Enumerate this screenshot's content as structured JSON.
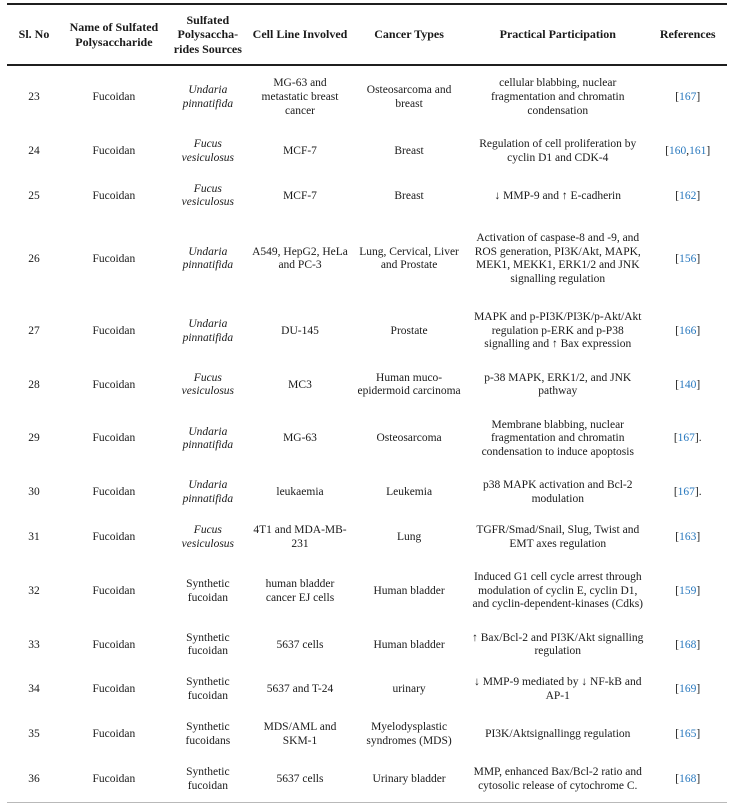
{
  "table": {
    "accent_color": "#2878be",
    "headers": [
      "Sl. No",
      "Name of Sulfated Polysaccharide",
      "Sulfated Polysaccha-rides Sources",
      "Cell Line Involved",
      "Cancer Types",
      "Practical Participation",
      "References"
    ],
    "rows": [
      {
        "no": "23",
        "name": "Fucoidan",
        "source": "Undaria pinnatifida",
        "source_italic": true,
        "cell_line": "MG-63 and metastatic breast cancer",
        "cancer": "Osteosarcoma and breast",
        "participation": "cellular blabbing, nuclear fragmentation and chromatin condensation",
        "ref_nums": [
          "167"
        ],
        "ref_suffix": ""
      },
      {
        "no": "24",
        "name": "Fucoidan",
        "source": "Fucus vesiculosus",
        "source_italic": true,
        "cell_line": "MCF-7",
        "cancer": "Breast",
        "participation": "Regulation of cell proliferation by cyclin D1 and CDK-4",
        "ref_nums": [
          "160",
          "161"
        ],
        "ref_suffix": ""
      },
      {
        "no": "25",
        "name": "Fucoidan",
        "source": "Fucus vesiculosus",
        "source_italic": true,
        "cell_line": "MCF-7",
        "cancer": "Breast",
        "participation": "↓ MMP-9 and ↑ E-cadherin",
        "ref_nums": [
          "162"
        ],
        "ref_suffix": ""
      },
      {
        "no": "26",
        "name": "Fucoidan",
        "source": "Undaria pinnatifida",
        "source_italic": true,
        "cell_line": "A549, HepG2, HeLa and PC-3",
        "cancer": "Lung, Cervical, Liver and Prostate",
        "participation": "Activation of caspase-8 and -9, and ROS generation, PI3K/Akt, MAPK, MEK1, MEKK1, ERK1/2 and JNK signalling regulation",
        "ref_nums": [
          "156"
        ],
        "ref_suffix": ""
      },
      {
        "no": "27",
        "name": "Fucoidan",
        "source": "Undaria pinnatifida",
        "source_italic": true,
        "cell_line": "DU-145",
        "cancer": "Prostate",
        "participation": "MAPK and p-PI3K/PI3K/p-Akt/Akt regulation p-ERK and p-P38 signalling and ↑ Bax expression",
        "ref_nums": [
          "166"
        ],
        "ref_suffix": ""
      },
      {
        "no": "28",
        "name": "Fucoidan",
        "source": "Fucus vesiculosus",
        "source_italic": true,
        "cell_line": "MC3",
        "cancer": "Human muco-epidermoid carcinoma",
        "participation": "p-38 MAPK, ERK1/2, and JNK pathway",
        "ref_nums": [
          "140"
        ],
        "ref_suffix": ""
      },
      {
        "no": "29",
        "name": "Fucoidan",
        "source": "Undaria pinnatifida",
        "source_italic": true,
        "cell_line": "MG-63",
        "cancer": "Osteosarcoma",
        "participation": "Membrane blabbing, nuclear fragmentation and chromatin condensation to induce apoptosis",
        "ref_nums": [
          "167"
        ],
        "ref_suffix": "."
      },
      {
        "no": "30",
        "name": "Fucoidan",
        "source": "Undaria pinnatifida",
        "source_italic": true,
        "cell_line": "leukaemia",
        "cancer": "Leukemia",
        "participation": "p38 MAPK activation and Bcl-2 modulation",
        "ref_nums": [
          "167"
        ],
        "ref_suffix": "."
      },
      {
        "no": "31",
        "name": "Fucoidan",
        "source": "Fucus vesiculosus",
        "source_italic": true,
        "cell_line": "4T1 and MDA-MB-231",
        "cancer": "Lung",
        "participation": "TGFR/Smad/Snail, Slug, Twist and EMT axes regulation",
        "ref_nums": [
          "163"
        ],
        "ref_suffix": ""
      },
      {
        "no": "32",
        "name": "Fucoidan",
        "source": "Synthetic fucoidan",
        "source_italic": false,
        "cell_line": "human bladder cancer EJ cells",
        "cancer": "Human bladder",
        "participation": "Induced G1 cell cycle arrest through modulation of cyclin E, cyclin D1, and cyclin-dependent-kinases (Cdks)",
        "ref_nums": [
          "159"
        ],
        "ref_suffix": ""
      },
      {
        "no": "33",
        "name": "Fucoidan",
        "source": "Synthetic fucoidan",
        "source_italic": false,
        "cell_line": "5637 cells",
        "cancer": "Human bladder",
        "participation": "↑ Bax/Bcl-2 and PI3K/Akt signalling regulation",
        "ref_nums": [
          "168"
        ],
        "ref_suffix": ""
      },
      {
        "no": "34",
        "name": "Fucoidan",
        "source": "Synthetic fucoidan",
        "source_italic": false,
        "cell_line": "5637 and T-24",
        "cancer": "urinary",
        "participation": "↓ MMP-9 mediated by ↓ NF-kB and AP-1",
        "ref_nums": [
          "169"
        ],
        "ref_suffix": ""
      },
      {
        "no": "35",
        "name": "Fucoidan",
        "source": "Synthetic fucoidans",
        "source_italic": false,
        "cell_line": "MDS/AML and SKM-1",
        "cancer": "Myelodysplastic syndromes (MDS)",
        "participation": "PI3K/Aktsignallingg regulation",
        "ref_nums": [
          "165"
        ],
        "ref_suffix": ""
      },
      {
        "no": "36",
        "name": "Fucoidan",
        "source": "Synthetic fucoidan",
        "source_italic": false,
        "cell_line": "5637 cells",
        "cancer": "Urinary bladder",
        "participation": "MMP, enhanced Bax/Bcl-2 ratio and cytosolic release of cytochrome C.",
        "ref_nums": [
          "168"
        ],
        "ref_suffix": ""
      }
    ]
  }
}
